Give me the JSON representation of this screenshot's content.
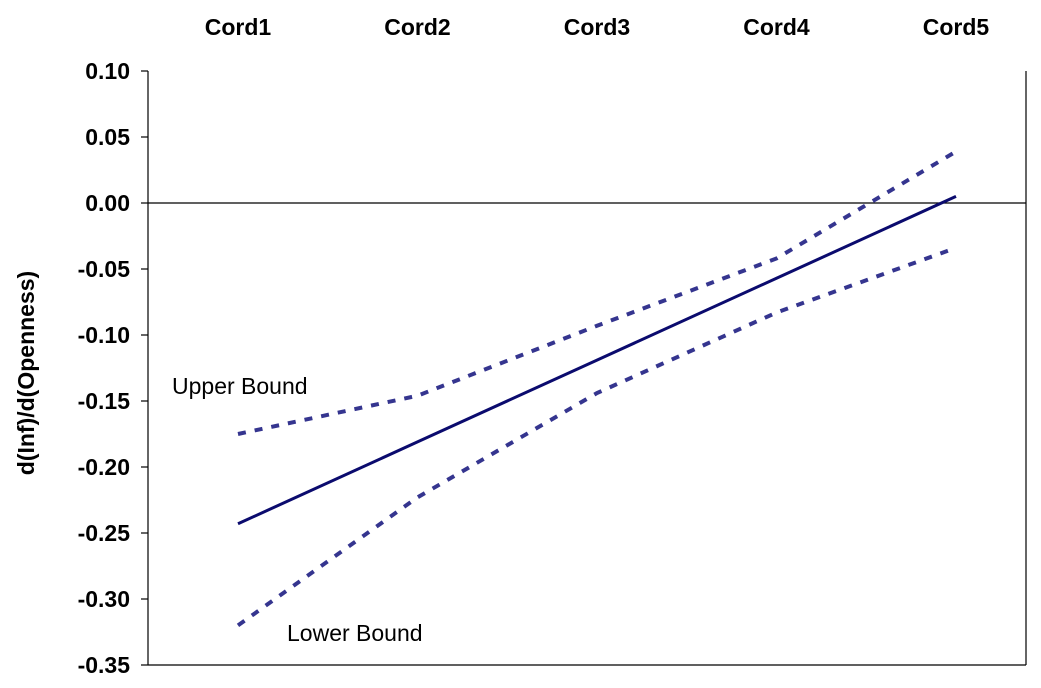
{
  "chart_data": {
    "type": "line",
    "title": "",
    "xlabel": "",
    "ylabel": "d(Inf)/d(Openness)",
    "categories": [
      "Cord1",
      "Cord2",
      "Cord3",
      "Cord4",
      "Cord5"
    ],
    "x_axis_position": "top",
    "ylim": [
      -0.35,
      0.1
    ],
    "yticks": [
      "0.10",
      "0.05",
      "0.00",
      "-0.05",
      "-0.10",
      "-0.15",
      "-0.20",
      "-0.25",
      "-0.30",
      "-0.35"
    ],
    "ytick_values": [
      0.1,
      0.05,
      0.0,
      -0.05,
      -0.1,
      -0.15,
      -0.2,
      -0.25,
      -0.3,
      -0.35
    ],
    "zero_line": true,
    "grid": false,
    "legend": "none",
    "series": [
      {
        "key": "estimate",
        "style": "solid",
        "color": "#0b0b6e",
        "values": [
          -0.243,
          -0.181,
          -0.119,
          -0.057,
          0.005
        ]
      },
      {
        "key": "upper",
        "style": "dotted",
        "color": "#35358f",
        "values": [
          -0.175,
          -0.146,
          -0.093,
          -0.042,
          0.039
        ]
      },
      {
        "key": "lower",
        "style": "dotted",
        "color": "#35358f",
        "values": [
          -0.32,
          -0.223,
          -0.144,
          -0.083,
          -0.034
        ]
      }
    ],
    "annotations": [
      {
        "text": "Upper Bound",
        "series": "upper"
      },
      {
        "text": "Lower Bound",
        "series": "lower"
      }
    ]
  }
}
